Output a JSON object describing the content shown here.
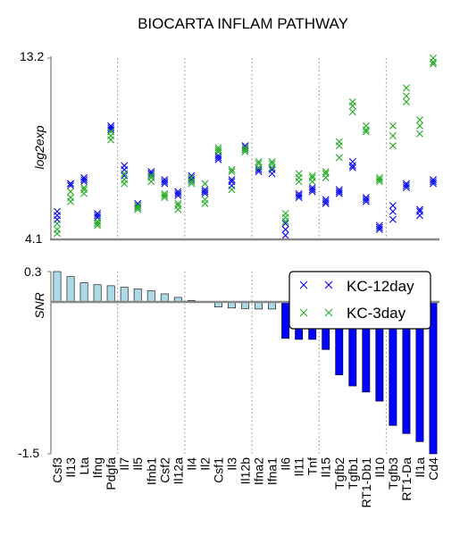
{
  "title": "BIOCARTA INFLAM PATHWAY",
  "colors": {
    "blue": "#0000ee",
    "green": "#22aa22",
    "light_bar": "#add8e6",
    "dark_bar": "#0000ff"
  },
  "chart_data": [
    {
      "type": "scatter",
      "title": "BIOCARTA INFLAM PATHWAY",
      "ylabel": "log2exp",
      "ylim": [
        4.1,
        13.2
      ],
      "yticks": [
        "4.1",
        "13.2"
      ],
      "grid": "vertical dotted lines every 5 categories",
      "categories": [
        "Csf3",
        "Il13",
        "Lta",
        "Ifng",
        "Pdgfa",
        "Il7",
        "Il5",
        "Ifnb1",
        "Csf2",
        "Il12a",
        "Il4",
        "Il2",
        "Csf1",
        "Il3",
        "Il12b",
        "Ifna2",
        "Ifna1",
        "Il6",
        "Il11",
        "Tnf",
        "Il15",
        "Tgfb2",
        "Tgfb1",
        "RT1-Db1",
        "Il10",
        "Tgfb3",
        "RT1-Da",
        "Il1a",
        "Cd4"
      ],
      "series": [
        {
          "name": "KC-12day",
          "marker": "x",
          "color": "#0000ee",
          "values": [
            [
              5.3,
              5.5,
              5.1
            ],
            [
              6.9,
              6.9,
              6.8
            ],
            [
              7.1,
              7.2,
              7.0
            ],
            [
              5.3,
              5.4,
              5.2
            ],
            [
              9.7,
              9.8,
              9.6
            ],
            [
              7.8,
              7.6,
              7.3
            ],
            [
              5.9,
              5.8,
              5.7
            ],
            [
              7.5,
              7.4,
              7.3
            ],
            [
              7.0,
              6.9,
              7.1
            ],
            [
              6.4,
              6.5,
              6.3
            ],
            [
              7.2,
              7.3,
              7.1
            ],
            [
              6.5,
              6.4,
              6.6
            ],
            [
              8.2,
              8.3,
              8.1
            ],
            [
              7.0,
              6.8,
              7.1
            ],
            [
              8.7,
              8.6,
              8.8
            ],
            [
              7.5,
              7.6,
              7.7
            ],
            [
              7.6,
              7.4,
              7.7
            ],
            [
              4.6,
              4.3,
              4.9
            ],
            [
              6.3,
              6.2,
              6.4
            ],
            [
              6.6,
              6.7,
              6.5
            ],
            [
              6.0,
              5.9,
              6.1
            ],
            [
              6.5,
              6.4,
              6.6
            ],
            [
              7.8,
              7.7,
              8.0
            ],
            [
              6.0,
              6.1,
              6.2
            ],
            [
              4.7,
              4.8,
              4.6
            ],
            [
              5.5,
              5.8,
              5.1
            ],
            [
              6.9,
              6.7,
              6.8
            ],
            [
              5.6,
              5.3,
              5.5
            ],
            [
              6.9,
              7.0,
              7.1
            ]
          ]
        },
        {
          "name": "KC-3day",
          "marker": "x",
          "color": "#22aa22",
          "values": [
            [
              4.6,
              4.4,
              4.9
            ],
            [
              6.2,
              6.5,
              6.0
            ],
            [
              6.6,
              6.4,
              6.7
            ],
            [
              4.9,
              5.0,
              4.8
            ],
            [
              9.3,
              9.1,
              9.5
            ],
            [
              7.1,
              7.4,
              6.9
            ],
            [
              5.7,
              5.6,
              5.8
            ],
            [
              7.0,
              7.3,
              7.2
            ],
            [
              6.3,
              6.2,
              6.4
            ],
            [
              5.6,
              5.8,
              5.9
            ],
            [
              7.0,
              6.9,
              7.2
            ],
            [
              5.9,
              6.1,
              6.9
            ],
            [
              8.6,
              8.7,
              8.5
            ],
            [
              7.6,
              6.6,
              7.5
            ],
            [
              8.5,
              8.6,
              8.7
            ],
            [
              7.9,
              8.0,
              7.7
            ],
            [
              8.0,
              7.7,
              7.9
            ],
            [
              5.2,
              5.4,
              5.0
            ],
            [
              7.0,
              7.2,
              7.4
            ],
            [
              7.2,
              7.0,
              7.3
            ],
            [
              7.4,
              7.2,
              7.5
            ],
            [
              8.8,
              8.2,
              9.0
            ],
            [
              10.5,
              10.8,
              11.0
            ],
            [
              9.8,
              9.5,
              9.6
            ],
            [
              7.1,
              7.0,
              7.2
            ],
            [
              9.3,
              9.8,
              8.8
            ],
            [
              11.7,
              11.3,
              11.0
            ],
            [
              10.1,
              9.8,
              9.4
            ],
            [
              13.2,
              13.0,
              12.9
            ]
          ]
        }
      ],
      "legend": {
        "position": "top-right of lower panel",
        "entries": [
          "KC-12day",
          "KC-3day"
        ]
      }
    },
    {
      "type": "bar",
      "ylabel": "SNR",
      "ylim": [
        -1.5,
        0.3
      ],
      "yticks": [
        "0.3",
        "-1.5"
      ],
      "grid": "vertical dotted lines every 5 categories",
      "categories": [
        "Csf3",
        "Il13",
        "Lta",
        "Ifng",
        "Pdgfa",
        "Il7",
        "Il5",
        "Ifnb1",
        "Csf2",
        "Il12a",
        "Il4",
        "Il2",
        "Csf1",
        "Il3",
        "Il12b",
        "Ifna2",
        "Ifna1",
        "Il6",
        "Il11",
        "Tnf",
        "Il15",
        "Tgfb2",
        "Tgfb1",
        "RT1-Db1",
        "Il10",
        "Tgfb3",
        "RT1-Da",
        "Il1a",
        "Cd4"
      ],
      "values": [
        0.3,
        0.25,
        0.19,
        0.17,
        0.16,
        0.145,
        0.13,
        0.11,
        0.08,
        0.045,
        0.015,
        0.005,
        -0.05,
        -0.06,
        -0.065,
        -0.07,
        -0.07,
        -0.36,
        -0.37,
        -0.37,
        -0.47,
        -0.72,
        -0.83,
        -0.89,
        -0.98,
        -1.22,
        -1.3,
        -1.38,
        -1.5
      ]
    }
  ]
}
